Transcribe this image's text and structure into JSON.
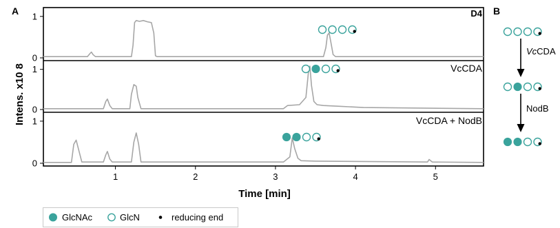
{
  "panel_labels": {
    "a": "A",
    "b": "B"
  },
  "sample_id": "D4",
  "colors": {
    "glcnac": "#3aa39c",
    "glcn_stroke": "#3aa39c",
    "trace": "#a6a6a6",
    "axis": "#000000"
  },
  "legend": {
    "glcnac": "GlcNAc",
    "glcn": "GlcN",
    "reducing_end": "reducing end"
  },
  "scheme": {
    "enzyme1": "CDA",
    "enzyme1_prefix": "Vc",
    "enzyme2": "NodB",
    "oligos": [
      {
        "pattern": "DDDD"
      },
      {
        "pattern": "DADD"
      },
      {
        "pattern": "AADD"
      }
    ]
  },
  "chart_data": {
    "type": "line",
    "xlabel": "Time [min]",
    "ylabel": "Intens. x10 8",
    "xlim": [
      0.1,
      5.6
    ],
    "x_ticks": [
      1,
      2,
      3,
      4,
      5
    ],
    "grid": false,
    "panels": [
      {
        "label": "",
        "oligo_pattern": "DDDD",
        "ylim": [
          0,
          1.3
        ],
        "y_ticks": [
          0,
          1
        ],
        "x": [
          0.1,
          0.65,
          0.68,
          0.7,
          0.72,
          0.75,
          1.2,
          1.22,
          1.24,
          1.26,
          1.3,
          1.35,
          1.4,
          1.45,
          1.48,
          1.5,
          1.52,
          3.6,
          3.63,
          3.65,
          3.67,
          3.69,
          3.72,
          3.75,
          5.6
        ],
        "y": [
          0.03,
          0.03,
          0.1,
          0.14,
          0.08,
          0.03,
          0.03,
          0.3,
          0.85,
          0.9,
          0.88,
          0.9,
          0.87,
          0.85,
          0.6,
          0.05,
          0.03,
          0.03,
          0.25,
          0.55,
          0.6,
          0.4,
          0.08,
          0.03,
          0.03
        ]
      },
      {
        "label": "VcCDA",
        "oligo_pattern": "DADD",
        "ylim": [
          0,
          1.3
        ],
        "y_ticks": [
          0,
          1
        ],
        "x": [
          0.1,
          0.85,
          0.88,
          0.9,
          0.93,
          0.96,
          1.18,
          1.2,
          1.23,
          1.26,
          1.28,
          1.32,
          3.1,
          3.15,
          3.3,
          3.38,
          3.41,
          3.43,
          3.45,
          3.48,
          3.52,
          3.6,
          3.8,
          4.1,
          5.6
        ],
        "y": [
          0.02,
          0.02,
          0.2,
          0.26,
          0.1,
          0.02,
          0.02,
          0.38,
          0.62,
          0.58,
          0.3,
          0.02,
          0.02,
          0.1,
          0.12,
          0.3,
          0.9,
          1.08,
          0.6,
          0.2,
          0.12,
          0.1,
          0.08,
          0.05,
          0.02
        ]
      },
      {
        "label": "VcCDA + NodB",
        "oligo_pattern": "AADD",
        "ylim": [
          0,
          1.3
        ],
        "y_ticks": [
          0,
          1
        ],
        "x": [
          0.1,
          0.45,
          0.48,
          0.51,
          0.55,
          0.58,
          0.85,
          0.88,
          0.9,
          0.93,
          0.96,
          1.2,
          1.23,
          1.26,
          1.29,
          1.32,
          3.1,
          3.18,
          3.21,
          3.24,
          3.28,
          3.32,
          3.5,
          4.9,
          4.92,
          4.96,
          5.6
        ],
        "y": [
          0.02,
          0.02,
          0.45,
          0.55,
          0.25,
          0.03,
          0.03,
          0.2,
          0.28,
          0.1,
          0.03,
          0.03,
          0.5,
          0.72,
          0.45,
          0.03,
          0.03,
          0.15,
          0.6,
          0.35,
          0.12,
          0.06,
          0.05,
          0.03,
          0.09,
          0.03,
          0.02
        ]
      }
    ]
  }
}
